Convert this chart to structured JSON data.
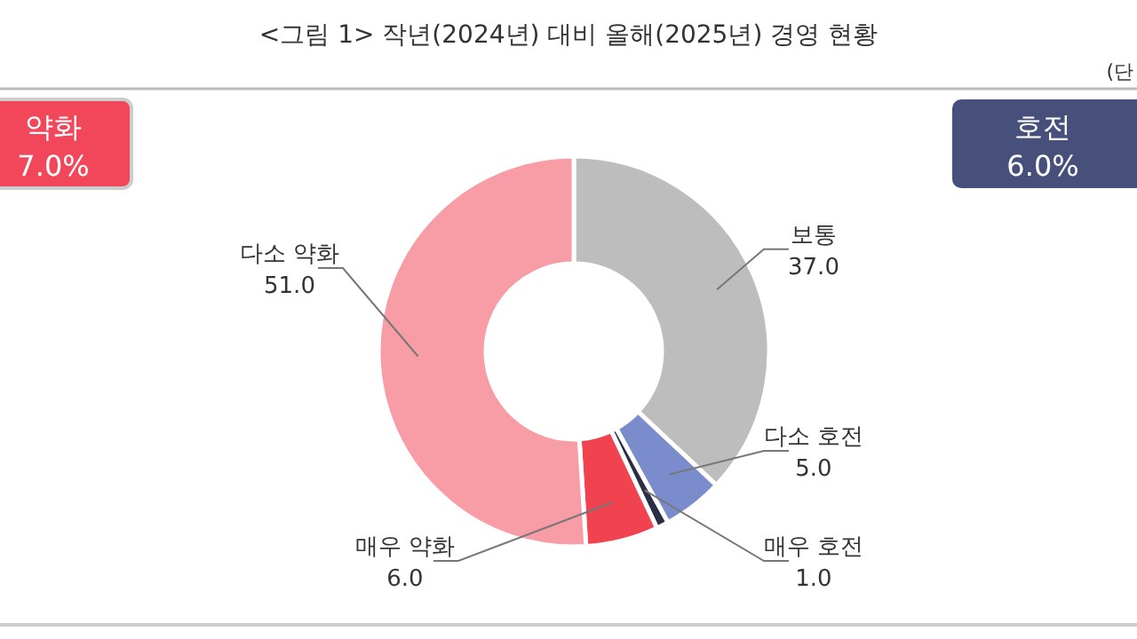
{
  "chart_data": {
    "type": "donut",
    "title": "<그림 1> 작년(2024년) 대비 올해(2025년) 경영 현황",
    "categories": [
      "보통",
      "다소 호전",
      "매우 호전",
      "매우 약화",
      "다소 약화"
    ],
    "values": [
      37.0,
      5.0,
      1.0,
      6.0,
      51.0
    ],
    "colors": [
      "#bdbdbd",
      "#7a8ccc",
      "#2b2f45",
      "#f0434f",
      "#f89ca5"
    ],
    "value_labels": [
      "37.0",
      "5.0",
      "1.0",
      "6.0",
      "51.0"
    ],
    "annotations": [
      "약화",
      "7.0%",
      "호전",
      "6.0%",
      "(단"
    ]
  }
}
